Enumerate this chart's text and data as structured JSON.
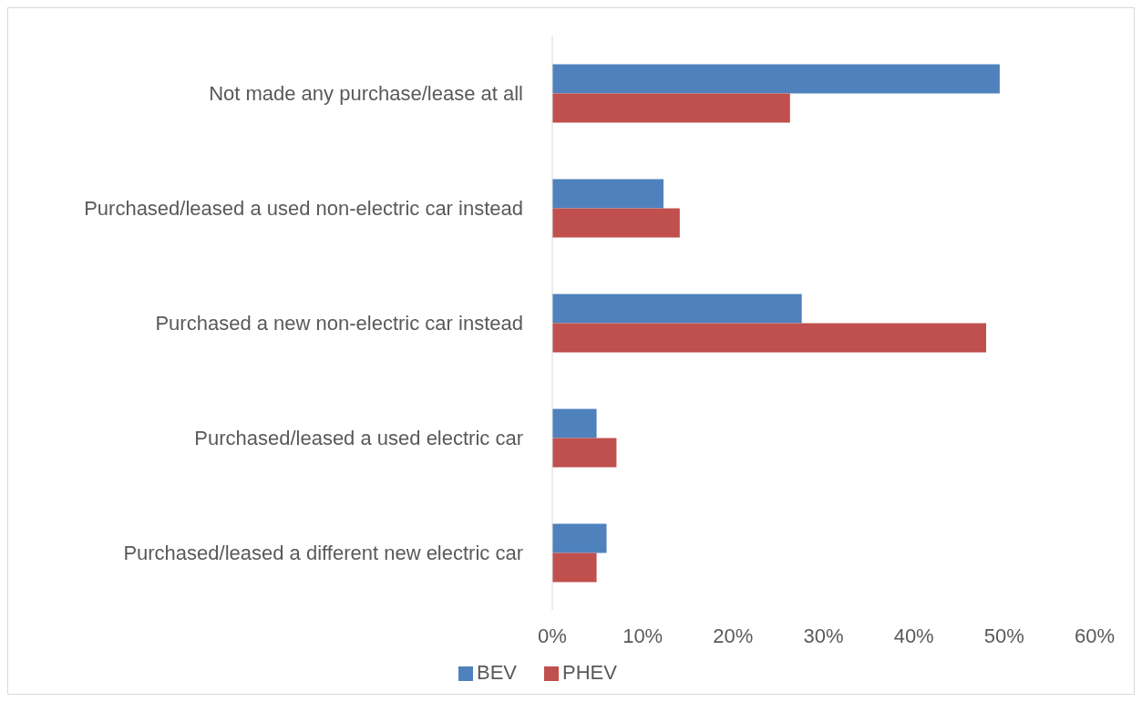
{
  "chart_data": {
    "type": "bar",
    "orientation": "horizontal",
    "categories": [
      "Not made any purchase/lease at all",
      "Purchased/leased a used non-electric car instead",
      "Purchased a new non-electric car instead",
      "Purchased/leased a used electric car",
      "Purchased/leased a different new electric car"
    ],
    "series": [
      {
        "name": "BEV",
        "color": "#4f81bd",
        "values": [
          49.5,
          12.3,
          27.6,
          4.9,
          6.0
        ]
      },
      {
        "name": "PHEV",
        "color": "#c0504d",
        "values": [
          26.3,
          14.1,
          48.0,
          7.1,
          4.9
        ]
      }
    ],
    "xlim": [
      0,
      60
    ],
    "xticks": [
      {
        "value": 0,
        "label": "0%"
      },
      {
        "value": 10,
        "label": "10%"
      },
      {
        "value": 20,
        "label": "20%"
      },
      {
        "value": 30,
        "label": "30%"
      },
      {
        "value": 40,
        "label": "40%"
      },
      {
        "value": 50,
        "label": "50%"
      },
      {
        "value": 60,
        "label": "60%"
      }
    ],
    "grid": false,
    "legend": "bottom"
  }
}
